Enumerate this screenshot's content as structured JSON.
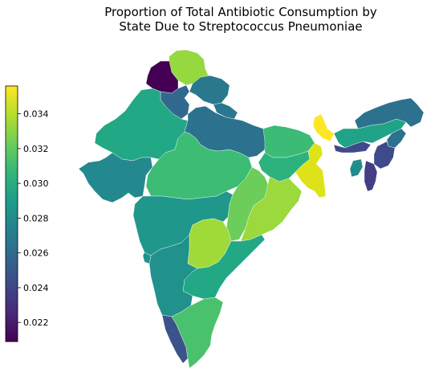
{
  "figure": {
    "title_line1": "Proportion of Total Antibiotic Consumption by",
    "title_line2": "State Due to Streptococcus Pneumoniae"
  },
  "colorbar": {
    "colormap": "viridis",
    "min": 0.0209,
    "max": 0.0356,
    "ticks": [
      "0.022",
      "0.024",
      "0.026",
      "0.028",
      "0.030",
      "0.032",
      "0.034"
    ],
    "stops": [
      "#440154",
      "#482878",
      "#3e4989",
      "#31688e",
      "#26828e",
      "#1f9e89",
      "#35b779",
      "#6ece58",
      "#b5de2b",
      "#fde725"
    ]
  },
  "regions": [
    {
      "id": "jammu-kashmir",
      "color": "#95d840"
    },
    {
      "id": "punjab",
      "color": "#440154"
    },
    {
      "id": "himachal",
      "color": "#2a788e"
    },
    {
      "id": "haryana",
      "color": "#31688e"
    },
    {
      "id": "uttarakhand",
      "color": "#2a788e"
    },
    {
      "id": "rajasthan",
      "color": "#22a884"
    },
    {
      "id": "uttar-pradesh",
      "color": "#2c728e"
    },
    {
      "id": "bihar",
      "color": "#3bbb75"
    },
    {
      "id": "gujarat",
      "color": "#23898e"
    },
    {
      "id": "madhya-pradesh",
      "color": "#3cbc74"
    },
    {
      "id": "jharkhand",
      "color": "#2db27d"
    },
    {
      "id": "west-bengal",
      "color": "#dde318"
    },
    {
      "id": "sikkim-north",
      "color": "#fde725"
    },
    {
      "id": "chhattisgarh",
      "color": "#6ccd5a"
    },
    {
      "id": "odisha",
      "color": "#9bd93c"
    },
    {
      "id": "maharashtra",
      "color": "#1f988b"
    },
    {
      "id": "telangana",
      "color": "#a0da39"
    },
    {
      "id": "andhra-pradesh",
      "color": "#22a884"
    },
    {
      "id": "karnataka",
      "color": "#21918c"
    },
    {
      "id": "goa",
      "color": "#21918c"
    },
    {
      "id": "kerala",
      "color": "#3b528b"
    },
    {
      "id": "tamil-nadu",
      "color": "#4ac16d"
    },
    {
      "id": "assam",
      "color": "#20a386"
    },
    {
      "id": "arunachal",
      "color": "#2c728e"
    },
    {
      "id": "meghalaya",
      "color": "#3e4a89"
    },
    {
      "id": "nagaland",
      "color": "#2c728e"
    },
    {
      "id": "manipur",
      "color": "#3e4a89"
    },
    {
      "id": "mizoram",
      "color": "#433e85"
    },
    {
      "id": "tripura",
      "color": "#228c8d"
    }
  ]
}
